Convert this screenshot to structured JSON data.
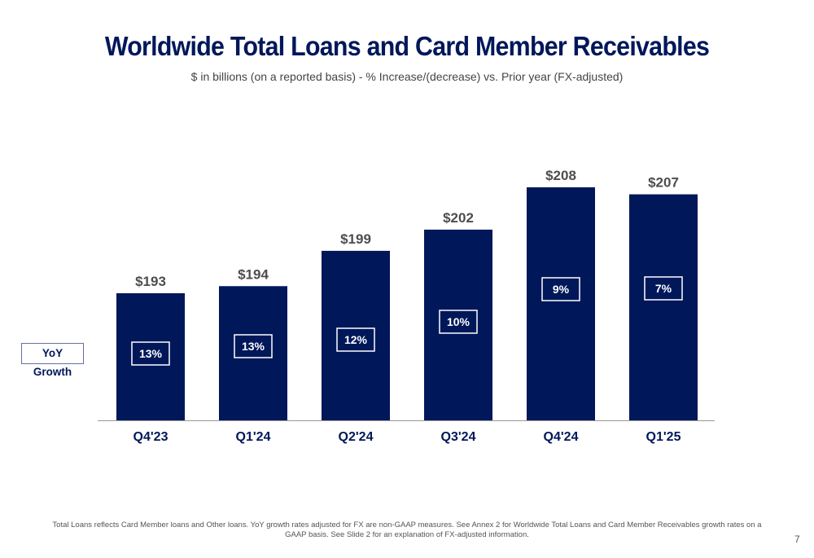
{
  "title": "Worldwide Total Loans and Card Member Receivables",
  "subtitle": "$ in billions (on a reported basis) - % Increase/(decrease) vs. Prior year (FX-adjusted)",
  "legend_label": "YoY Growth",
  "footnote": "Total Loans reflects Card Member loans and Other loans. YoY growth rates adjusted for FX are non-GAAP measures. See Annex 2 for Worldwide Total Loans and Card Member Receivables growth rates on a GAAP basis. See Slide 2 for an explanation of FX-adjusted information.",
  "page_number": "7",
  "colors": {
    "bar": "#00175a",
    "value_label": "#4d4d4d",
    "category_label": "#00175a"
  },
  "chart_data": {
    "type": "bar",
    "categories": [
      "Q4'23",
      "Q1'24",
      "Q2'24",
      "Q3'24",
      "Q4'24",
      "Q1'25"
    ],
    "values": [
      193,
      194,
      199,
      202,
      208,
      207
    ],
    "value_labels": [
      "$193",
      "$194",
      "$199",
      "$202",
      "$208",
      "$207"
    ],
    "yoy_growth": [
      "13%",
      "13%",
      "12%",
      "10%",
      "9%",
      "7%"
    ],
    "ylim": [
      175,
      215
    ],
    "grid": false,
    "xlabel": "",
    "ylabel": ""
  }
}
